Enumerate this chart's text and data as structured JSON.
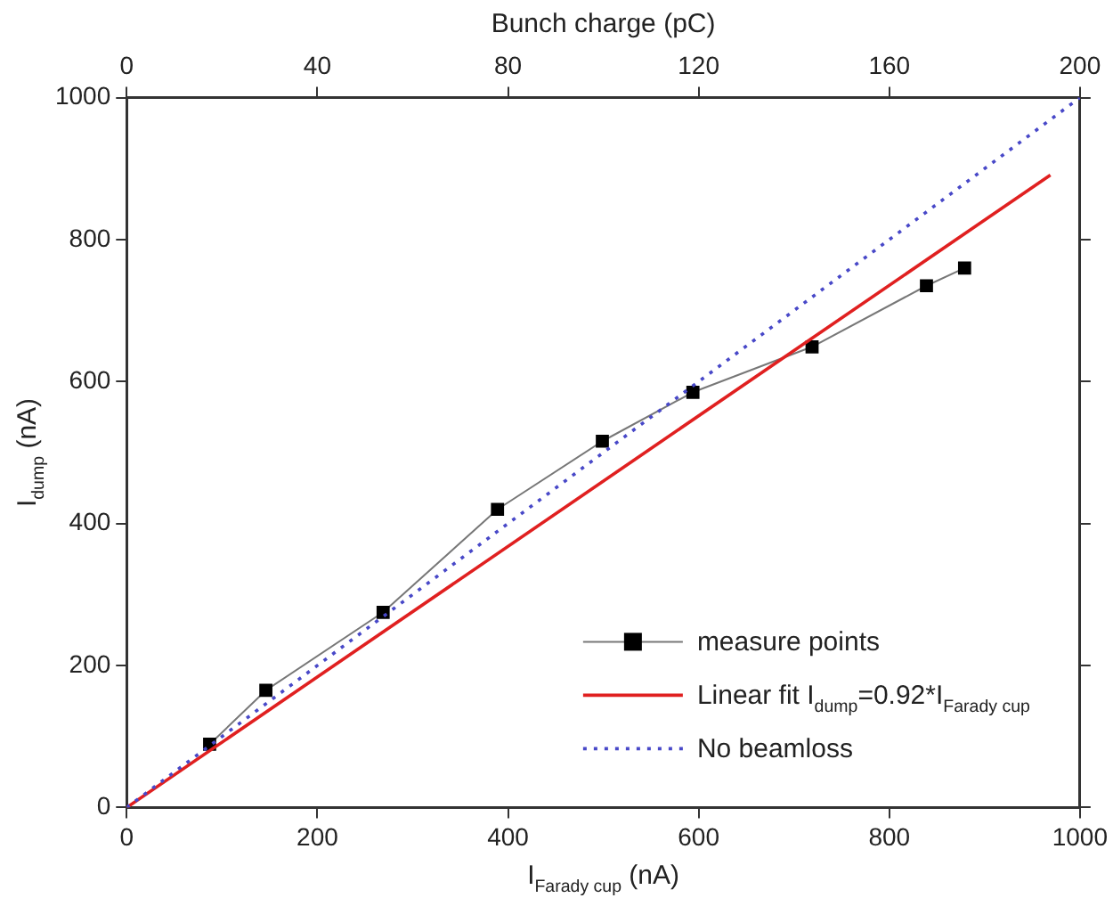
{
  "chart_data": {
    "type": "line",
    "xlabel": "I$_{Farady cup}$ (nA)",
    "ylabel": "I$_{dump}$ (nA)",
    "x2label": "Bunch charge (pC)",
    "xlim": [
      0,
      1000
    ],
    "xticks": [
      0,
      200,
      400,
      600,
      800,
      1000
    ],
    "ylim": [
      0,
      1000
    ],
    "yticks": [
      0,
      200,
      400,
      600,
      800,
      1000
    ],
    "x2lim": [
      0,
      200
    ],
    "x2ticks": [
      0,
      40,
      80,
      120,
      160,
      200
    ],
    "grid": false,
    "legend": "bottom right",
    "series": [
      {
        "name": "measure points",
        "color": "#000000",
        "marker": "square",
        "line_style": "solid",
        "x": [
          87,
          146,
          269,
          389,
          499,
          594,
          719,
          839,
          879
        ],
        "values": [
          89,
          165,
          275,
          420,
          516,
          585,
          649,
          735,
          760
        ]
      },
      {
        "name": "Linear fit I$_{dump}$=0.92*I$_{Farady cup}$",
        "color": "#e02020",
        "marker": "none",
        "line_style": "solid",
        "x": [
          0,
          969
        ],
        "values": [
          0,
          891
        ]
      },
      {
        "name": "No beamloss",
        "color": "#4848c8",
        "marker": "none",
        "line_style": "dotted",
        "x": [
          0,
          1000
        ],
        "values": [
          0,
          1000
        ]
      }
    ]
  }
}
